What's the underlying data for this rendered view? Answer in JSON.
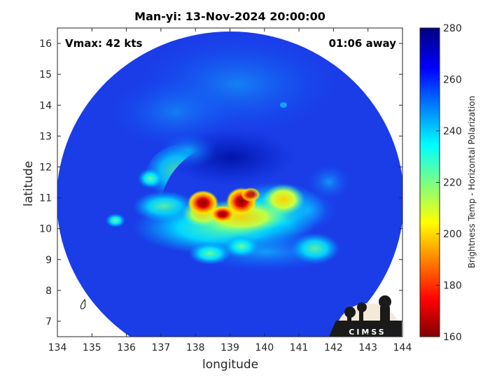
{
  "figure": {
    "title": "Man-yi: 13-Nov-2024 20:00:00",
    "vmax_text": "Vmax: 42 kts",
    "away_text": "01:06 away",
    "logo_text": "CIMSS"
  },
  "chart_data": {
    "type": "heatmap",
    "title": "Man-yi: 13-Nov-2024 20:00:00",
    "xlabel": "longitude",
    "ylabel": "latitude",
    "xlim": [
      134,
      144
    ],
    "ylim": [
      6.5,
      16.5
    ],
    "xticks": [
      "134",
      "135",
      "136",
      "137",
      "138",
      "139",
      "140",
      "141",
      "142",
      "143",
      "144"
    ],
    "yticks": [
      "7",
      "8",
      "9",
      "10",
      "11",
      "12",
      "13",
      "14",
      "15",
      "16"
    ],
    "colorbar": {
      "label": "Brightness Temp - Horizontal Polarization",
      "range": [
        160,
        280
      ],
      "ticks": [
        "160",
        "180",
        "200",
        "220",
        "240",
        "260",
        "280"
      ],
      "colormap": "jet"
    },
    "swath_center": [
      139.3,
      10.3
    ],
    "storm_features": [
      {
        "lon": 138.3,
        "lat": 10.8,
        "tb": 172
      },
      {
        "lon": 139.3,
        "lat": 10.9,
        "tb": 168
      },
      {
        "lon": 138.7,
        "lat": 10.3,
        "tb": 180
      },
      {
        "lon": 140.5,
        "lat": 10.9,
        "tb": 205
      },
      {
        "lon": 139.2,
        "lat": 10.3,
        "tb": 208
      },
      {
        "lon": 137.0,
        "lat": 11.0,
        "tb": 225
      }
    ],
    "grid": false
  },
  "colors": {
    "background": "#ffffff",
    "cold_fill": "#1a3de8",
    "axis": "#262626"
  }
}
